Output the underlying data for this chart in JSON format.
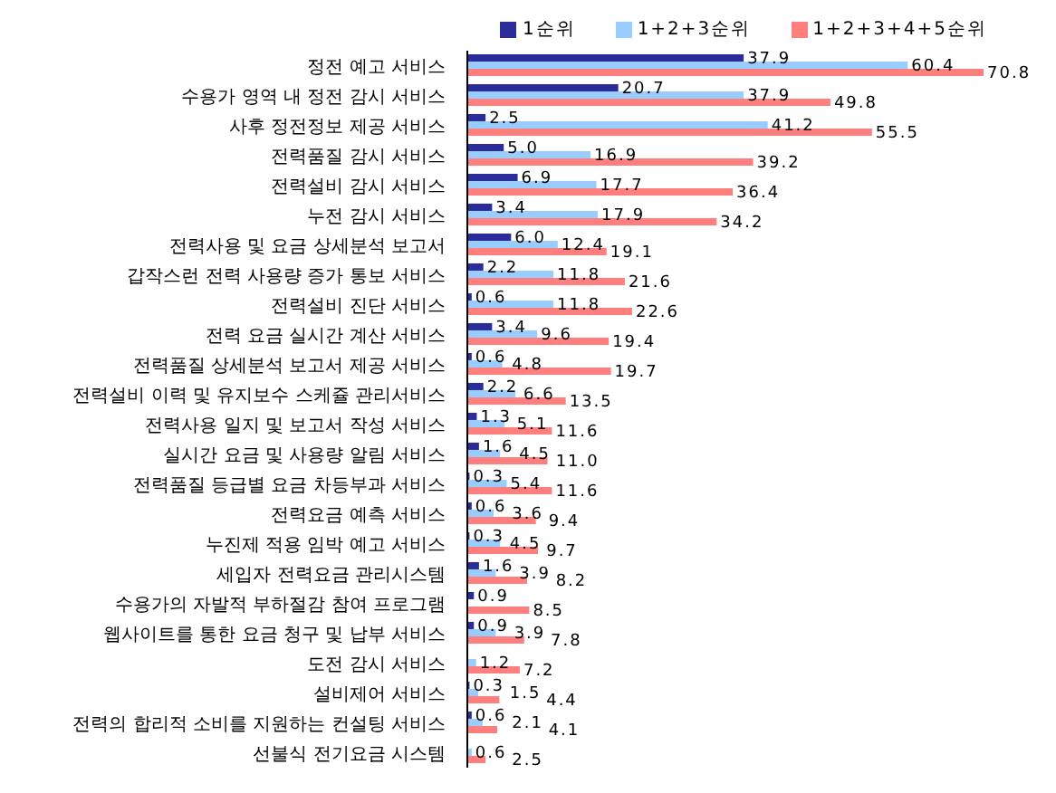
{
  "chart_data": {
    "type": "bar",
    "orientation": "horizontal",
    "categories": [
      "정전 예고 서비스",
      "수용가 영역 내 정전 감시 서비스",
      "사후 정전정보 제공 서비스",
      "전력품질 감시 서비스",
      "전력설비 감시 서비스",
      "누전 감시 서비스",
      "전력사용 및 요금 상세분석 보고서",
      "갑작스런 전력 사용량 증가 통보 서비스",
      "전력설비 진단 서비스",
      "전력 요금 실시간 계산 서비스",
      "전력품질 상세분석 보고서 제공 서비스",
      "전력설비 이력 및 유지보수 스케쥴 관리서비스",
      "전력사용 일지 및 보고서 작성 서비스",
      "실시간 요금 및 사용량 알림 서비스",
      "전력품질 등급별 요금 차등부과 서비스",
      "전력요금 예측 서비스",
      "누진제 적용 임박 예고 서비스",
      "세입자 전력요금 관리시스템",
      "수용가의 자발적 부하절감 참여 프로그램",
      "웹사이트를 통한 요금 청구 및 납부 서비스",
      "도전 감시 서비스",
      "설비제어 서비스",
      "전력의 합리적 소비를 지원하는 컨설팅 서비스",
      "선불식 전기요금 시스템"
    ],
    "series": [
      {
        "name": "1순위",
        "color": "#2b2b99",
        "values": [
          37.9,
          20.7,
          2.5,
          5.0,
          6.9,
          3.4,
          6.0,
          2.2,
          0.6,
          3.4,
          0.6,
          2.2,
          1.3,
          1.6,
          0.3,
          0.6,
          0.3,
          1.6,
          0.9,
          0.9,
          null,
          0.3,
          0.6,
          null
        ],
        "value_labels": [
          "37.9",
          "20.7",
          "2.5",
          "5.0",
          "6.9",
          "3.4",
          "6.0",
          "2.2",
          "0.6",
          "3.4",
          "0.6",
          "2.2",
          "1.3",
          "1.6",
          "0.3",
          "0.6",
          "0.3",
          "1.6",
          "0.9",
          "0.9",
          null,
          "0.3",
          "0.6",
          null
        ]
      },
      {
        "name": "1+2+3순위",
        "color": "#99ccff",
        "values": [
          60.4,
          37.9,
          41.2,
          16.9,
          17.7,
          17.9,
          12.4,
          11.8,
          11.8,
          9.6,
          4.8,
          6.6,
          5.1,
          4.5,
          5.4,
          3.6,
          4.5,
          3.9,
          null,
          3.9,
          1.2,
          1.5,
          2.1,
          0.6
        ],
        "value_labels": [
          "60.4",
          "37.9",
          "41.2",
          "16.9",
          "17.7",
          "17.9",
          "12.4",
          "11.8",
          "11.8",
          "9.6",
          "4.8",
          "6.6",
          "5.1",
          "4.5",
          "5.4",
          "3.6",
          "4.5",
          "3.9",
          null,
          "3.9",
          "1.2",
          "1.5",
          "2.1",
          "0.6"
        ]
      },
      {
        "name": "1+2+3+4+5순위",
        "color": "#ff7f7f",
        "values": [
          70.8,
          49.8,
          55.5,
          39.2,
          36.4,
          34.2,
          19.1,
          21.6,
          22.6,
          19.4,
          19.7,
          13.5,
          11.6,
          11.0,
          11.6,
          9.4,
          9.7,
          8.2,
          8.5,
          7.8,
          7.2,
          4.4,
          4.1,
          2.5
        ],
        "value_labels": [
          "70.8",
          "49.8",
          "55.5",
          "39.2",
          "36.4",
          "34.2",
          "19.1",
          "21.6",
          "22.6",
          "19.4",
          "19.7",
          "13.5",
          "11.6",
          "11.0",
          "11.6",
          "9.4",
          "9.7",
          "8.2",
          "8.5",
          "7.8",
          "7.2",
          "4.4",
          "4.1",
          "2.5"
        ]
      }
    ],
    "tick_labels": "y",
    "legend": "top right"
  }
}
